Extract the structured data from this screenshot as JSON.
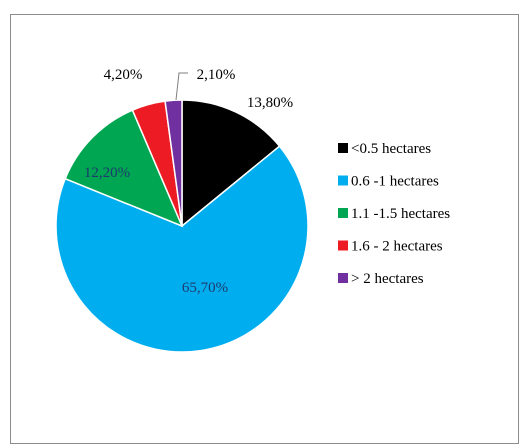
{
  "chart_data": {
    "type": "pie",
    "categories": [
      "<0.5 hectares",
      "0.6 -1 hectares",
      "1.1 -1.5 hectares",
      "1.6 - 2 hectares",
      "> 2 hectares"
    ],
    "values": [
      13.8,
      65.7,
      12.2,
      4.2,
      2.1
    ],
    "data_labels": [
      "13,80%",
      "65,70%",
      "12,20%",
      "4,20%",
      "2,10%"
    ],
    "colors": [
      "#000000",
      "#00aeef",
      "#00a651",
      "#ed1c24",
      "#7030a0"
    ],
    "label_colors": [
      "#000000",
      "#1f3a6e",
      "#1f3a6e",
      "#000000",
      "#000000"
    ],
    "legend_placement": "right",
    "title": ""
  }
}
